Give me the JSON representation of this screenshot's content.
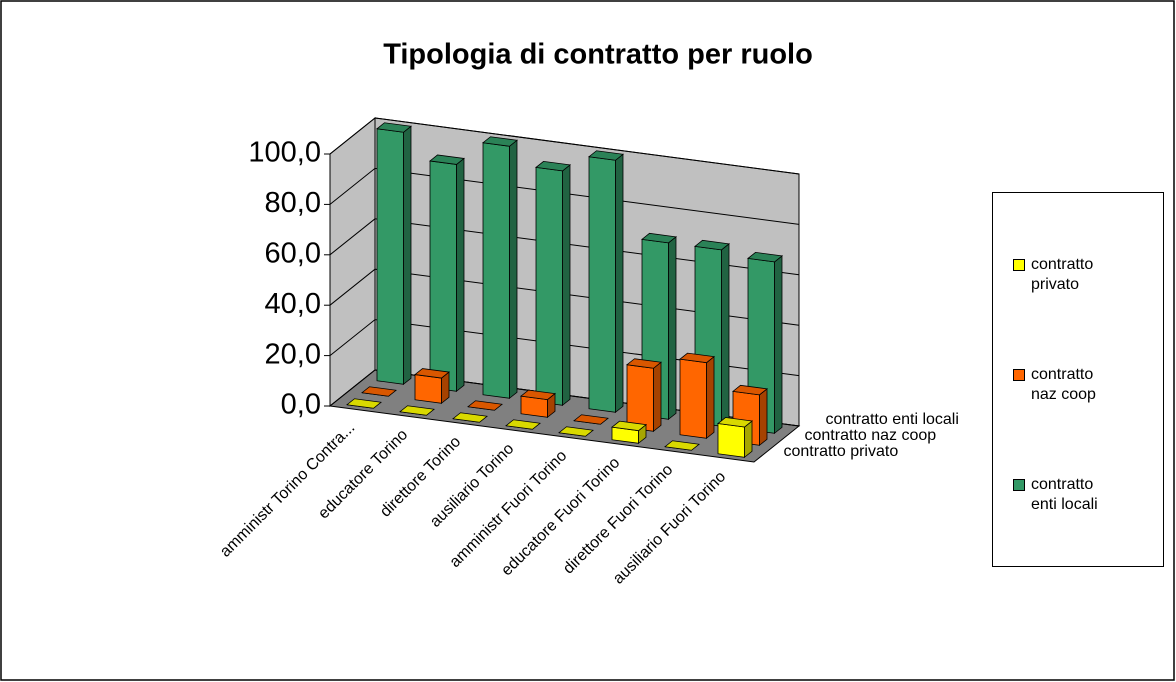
{
  "chart_data": {
    "type": "bar3d",
    "title": "Tipologia di contratto per ruolo",
    "categories": [
      "amministr Torino Contra...",
      "educatore Torino",
      "direttore Torino",
      "ausiliario Torino",
      "amministr Fuori Torino",
      "educatore Fuori Torino",
      "direttore Fuori Torino",
      "ausiliario Fuori Torino"
    ],
    "series": [
      {
        "name": "contratto privato",
        "color": "#ffff00",
        "values": [
          0,
          0,
          0,
          0,
          0,
          5,
          0,
          12
        ]
      },
      {
        "name": "contratto naz coop",
        "color": "#ff6600",
        "values": [
          0,
          10,
          0,
          7,
          0,
          25,
          30,
          20
        ]
      },
      {
        "name": "contratto enti locali",
        "color": "#339966",
        "values": [
          100,
          90,
          100,
          93,
          100,
          70,
          70,
          68
        ]
      }
    ],
    "ylim": [
      0,
      100
    ],
    "yticks": [
      {
        "value": 0,
        "label": "0,0"
      },
      {
        "value": 20,
        "label": "20,0"
      },
      {
        "value": 40,
        "label": "40,0"
      },
      {
        "value": 60,
        "label": "60,0"
      },
      {
        "value": 80,
        "label": "80,0"
      },
      {
        "value": 100,
        "label": "100,0"
      }
    ],
    "grid": true,
    "legend": "right"
  }
}
